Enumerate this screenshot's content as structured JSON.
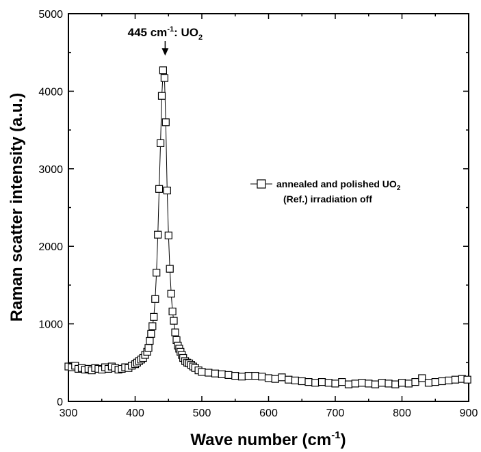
{
  "chart_data": {
    "type": "line",
    "xlabel": {
      "main": "Wave number (cm",
      "sup": "-1",
      "tail": ")"
    },
    "ylabel": "Raman scatter intensity (a.u.)",
    "xlim": [
      300,
      900
    ],
    "ylim": [
      0,
      5000
    ],
    "x_ticks": [
      "300",
      "400",
      "500",
      "600",
      "700",
      "800",
      "900"
    ],
    "y_ticks": [
      "0",
      "1000",
      "2000",
      "3000",
      "4000",
      "5000"
    ],
    "grid": false,
    "legend_position": "right-middle",
    "annotation": {
      "x": 445,
      "y": 4450,
      "pre": "445 cm",
      "sup": "-1",
      "mid": ": UO",
      "sub": "2"
    },
    "legend": {
      "line1": "annealed and polished UO",
      "line1_sub": "2",
      "line2": "(Ref.) irradiation off"
    },
    "series": [
      {
        "marker": "open-square",
        "color": "#000000",
        "x": [
          300,
          305,
          310,
          315,
          320,
          325,
          330,
          335,
          340,
          345,
          350,
          355,
          360,
          365,
          370,
          375,
          380,
          385,
          390,
          395,
          400,
          403,
          406,
          409,
          412,
          415,
          418,
          420,
          422,
          424,
          426,
          428,
          430,
          432,
          434,
          436,
          438,
          440,
          442,
          444,
          446,
          448,
          450,
          452,
          454,
          456,
          458,
          460,
          462,
          464,
          466,
          468,
          470,
          472,
          475,
          478,
          481,
          484,
          487,
          490,
          495,
          500,
          510,
          520,
          530,
          540,
          550,
          560,
          570,
          580,
          590,
          600,
          610,
          620,
          630,
          640,
          650,
          660,
          670,
          680,
          690,
          700,
          710,
          720,
          730,
          740,
          750,
          760,
          770,
          780,
          790,
          800,
          810,
          820,
          830,
          840,
          850,
          860,
          870,
          880,
          890,
          898
        ],
        "y": [
          450,
          440,
          460,
          420,
          430,
          410,
          420,
          400,
          430,
          420,
          410,
          440,
          420,
          450,
          430,
          410,
          420,
          440,
          430,
          460,
          480,
          500,
          520,
          540,
          560,
          600,
          640,
          690,
          780,
          870,
          970,
          1090,
          1320,
          1660,
          2150,
          2740,
          3330,
          3940,
          4270,
          4170,
          3600,
          2720,
          2140,
          1710,
          1390,
          1160,
          1040,
          890,
          790,
          720,
          680,
          640,
          600,
          560,
          520,
          500,
          490,
          470,
          450,
          430,
          400,
          380,
          370,
          360,
          350,
          340,
          330,
          320,
          330,
          330,
          320,
          300,
          290,
          310,
          280,
          270,
          260,
          250,
          240,
          250,
          240,
          230,
          250,
          220,
          230,
          240,
          230,
          220,
          240,
          230,
          220,
          240,
          230,
          250,
          300,
          240,
          250,
          260,
          270,
          280,
          290,
          280
        ]
      }
    ]
  }
}
